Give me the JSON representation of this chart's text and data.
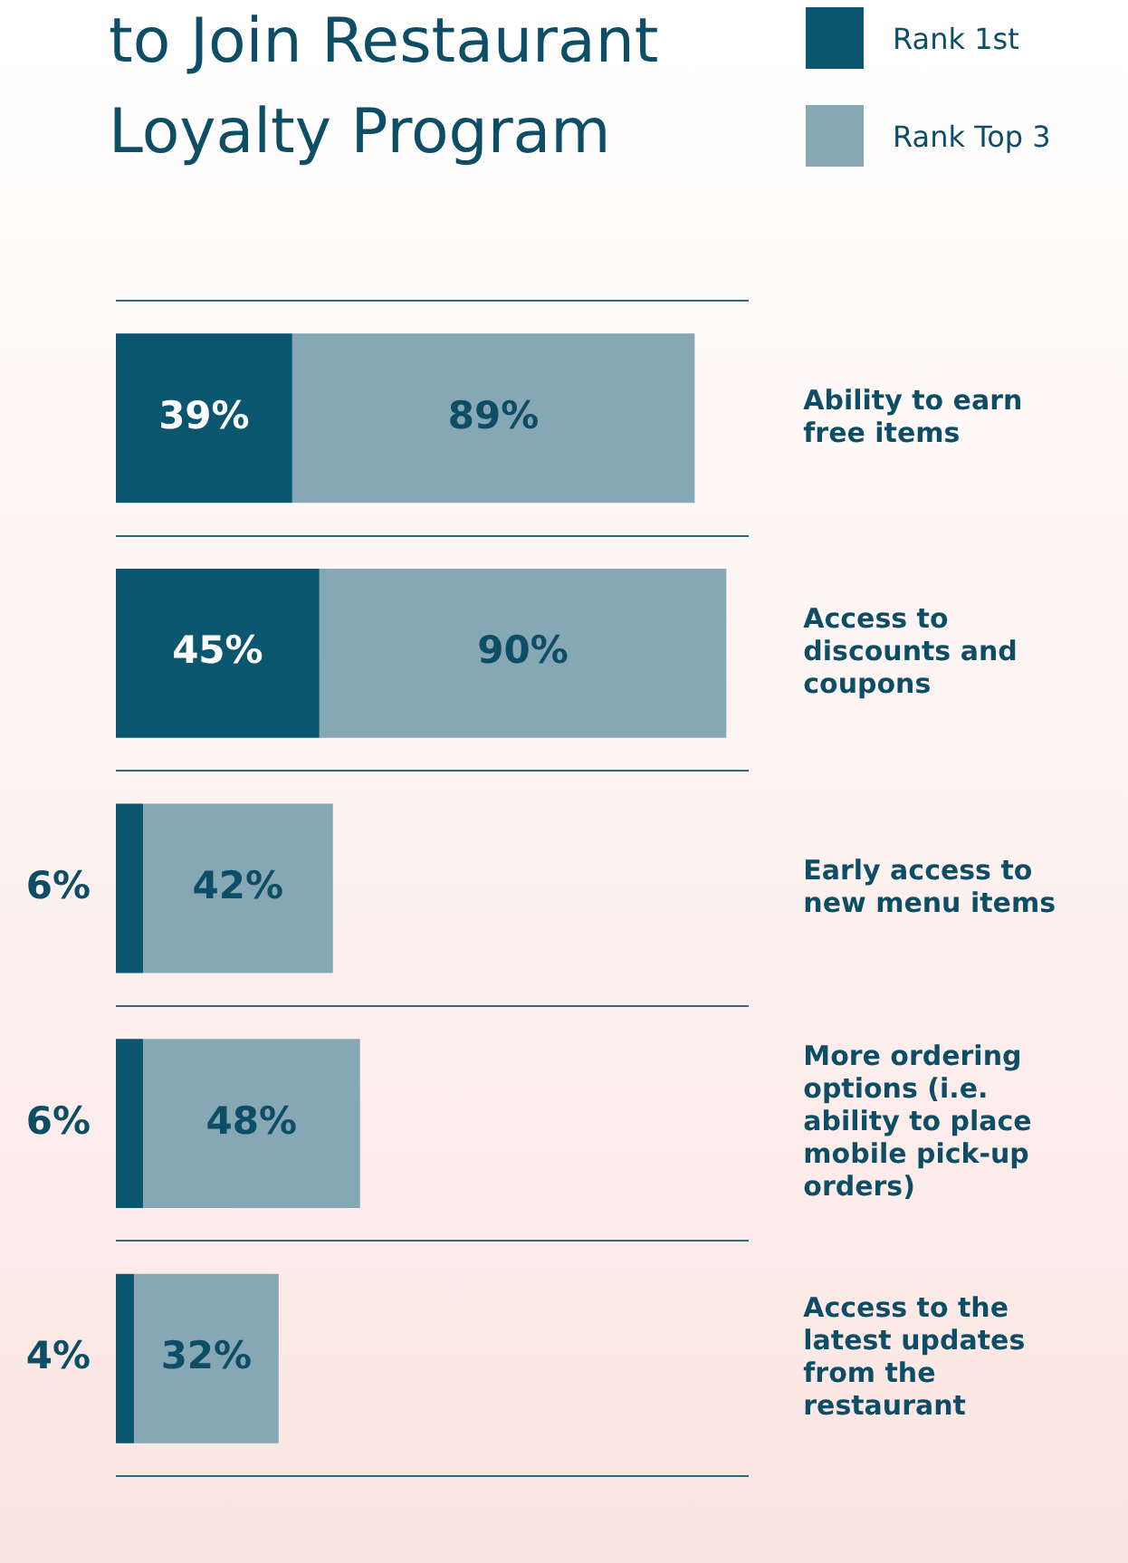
{
  "chart_data": {
    "type": "bar",
    "orientation": "horizontal",
    "stacked": true,
    "title": "to Join Restaurant Loyalty Program",
    "categories": [
      "Ability to earn free items",
      "Access to discounts and coupons",
      "Early access to new menu items",
      "More ordering options (i.e. ability to place mobile pick-up orders)",
      "Access to the latest updates from the restaurant"
    ],
    "series": [
      {
        "name": "Rank 1st",
        "color": "#0b566f",
        "values": [
          39,
          45,
          6,
          6,
          4
        ],
        "value_labels": [
          "39%",
          "45%",
          "6%",
          "6%",
          "4%"
        ]
      },
      {
        "name": "Rank Top 3",
        "color": "#86a8b5",
        "values": [
          89,
          90,
          42,
          48,
          32
        ],
        "value_labels": [
          "89%",
          "90%",
          "42%",
          "48%",
          "32%"
        ]
      }
    ],
    "legend": "top right",
    "grid": "y",
    "tick_labels": "y"
  }
}
